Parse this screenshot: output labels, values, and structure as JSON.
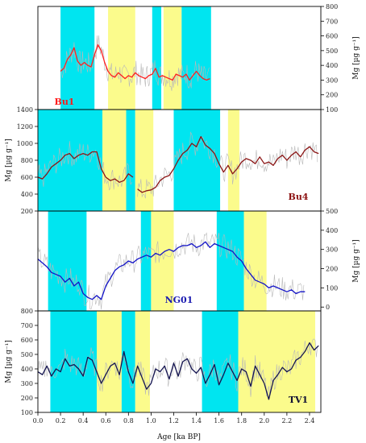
{
  "colors": {
    "cyan_band": "#00e5f0",
    "yellow_band": "#fbfb8c",
    "raw_trace": "#b9b9b9"
  },
  "chart_data": [
    {
      "type": "line",
      "label": "Bu1",
      "label_color": "#ff1a1a",
      "line_color": "#ff2020",
      "ylabel": "Mg [µg g⁻¹]",
      "yaxis_side": "right",
      "ylim": [
        100,
        800
      ],
      "yticks": [
        100,
        200,
        300,
        400,
        500,
        600,
        700,
        800
      ],
      "xlim": [
        0.0,
        2.5
      ],
      "bands": [
        {
          "color": "cyan",
          "x0": 0.2,
          "x1": 0.5
        },
        {
          "color": "yellow",
          "x0": 0.62,
          "x1": 0.86
        },
        {
          "color": "cyan",
          "x0": 1.01,
          "x1": 1.09
        },
        {
          "color": "yellow",
          "x0": 1.11,
          "x1": 1.27
        },
        {
          "color": "cyan",
          "x0": 1.27,
          "x1": 1.53
        }
      ],
      "series": [
        {
          "segments": [
            {
              "x": [
                0.2,
                0.23,
                0.26,
                0.29,
                0.32,
                0.35,
                0.38,
                0.41,
                0.44,
                0.47,
                0.5,
                0.53,
                0.56,
                0.59,
                0.62,
                0.65,
                0.68,
                0.71,
                0.74,
                0.77,
                0.8,
                0.83,
                0.86,
                0.89,
                0.92,
                0.95,
                0.98,
                1.01,
                1.04,
                1.07,
                1.1,
                1.13,
                1.16,
                1.19,
                1.22,
                1.25,
                1.28,
                1.31,
                1.34,
                1.37,
                1.4,
                1.43,
                1.46,
                1.49,
                1.52
              ],
              "y": [
                360,
                380,
                440,
                470,
                520,
                430,
                400,
                420,
                400,
                390,
                470,
                540,
                500,
                420,
                360,
                330,
                320,
                350,
                330,
                310,
                330,
                320,
                350,
                330,
                320,
                310,
                330,
                340,
                380,
                320,
                330,
                320,
                310,
                300,
                340,
                330,
                320,
                340,
                300,
                330,
                360,
                330,
                310,
                300,
                310
              ]
            }
          ]
        }
      ]
    },
    {
      "type": "line",
      "label": "Bu4",
      "label_color": "#8b1010",
      "line_color": "#8b1414",
      "ylabel": "Mg [µg g⁻¹]",
      "yaxis_side": "left",
      "ylim": [
        200,
        1400
      ],
      "yticks": [
        200,
        400,
        600,
        800,
        1000,
        1200,
        1400
      ],
      "xlim": [
        0.0,
        2.5
      ],
      "bands": [
        {
          "color": "cyan",
          "x0": 0.0,
          "x1": 0.57
        },
        {
          "color": "yellow",
          "x0": 0.57,
          "x1": 0.78
        },
        {
          "color": "cyan",
          "x0": 0.78,
          "x1": 0.86
        },
        {
          "color": "yellow",
          "x0": 0.86,
          "x1": 1.02
        },
        {
          "color": "cyan",
          "x0": 1.2,
          "x1": 1.61
        },
        {
          "color": "yellow",
          "x0": 1.68,
          "x1": 1.78
        }
      ],
      "series": [
        {
          "segments": [
            {
              "x": [
                0.0,
                0.04,
                0.08,
                0.12,
                0.16,
                0.2,
                0.24,
                0.28,
                0.32,
                0.36,
                0.4,
                0.44,
                0.48,
                0.52,
                0.56,
                0.6,
                0.64,
                0.68,
                0.72,
                0.76,
                0.8,
                0.84
              ],
              "y": [
                600,
                580,
                640,
                720,
                760,
                800,
                860,
                880,
                820,
                860,
                880,
                860,
                900,
                900,
                700,
                600,
                560,
                580,
                540,
                560,
                640,
                600
              ]
            },
            {
              "x": [
                0.88,
                0.92,
                0.96,
                1.0,
                1.04,
                1.08,
                1.12,
                1.16,
                1.2,
                1.24,
                1.28,
                1.32,
                1.36,
                1.4,
                1.44,
                1.48,
                1.52,
                1.56,
                1.6,
                1.64,
                1.68,
                1.72,
                1.76,
                1.8,
                1.84,
                1.88,
                1.92,
                1.96,
                2.0,
                2.04,
                2.08,
                2.12,
                2.16,
                2.2,
                2.24,
                2.28,
                2.32,
                2.36,
                2.4,
                2.44,
                2.48
              ],
              "y": [
                460,
                420,
                440,
                450,
                480,
                560,
                600,
                620,
                700,
                800,
                880,
                920,
                1000,
                960,
                1080,
                980,
                940,
                880,
                760,
                660,
                740,
                640,
                700,
                780,
                820,
                800,
                760,
                840,
                760,
                780,
                740,
                820,
                860,
                800,
                860,
                900,
                840,
                920,
                960,
                900,
                880
              ]
            }
          ]
        }
      ]
    },
    {
      "type": "line",
      "label": "NG01",
      "label_color": "#1a1ab0",
      "line_color": "#1414c8",
      "ylabel": "Mg [µg g⁻¹]",
      "yaxis_side": "right",
      "ylim": [
        -20,
        500
      ],
      "yticks": [
        0,
        100,
        200,
        300,
        400,
        500
      ],
      "xlim": [
        0.0,
        2.5
      ],
      "bands": [
        {
          "color": "cyan",
          "x0": 0.09,
          "x1": 0.43
        },
        {
          "color": "cyan",
          "x0": 0.91,
          "x1": 1.0
        },
        {
          "color": "yellow",
          "x0": 1.0,
          "x1": 1.2
        },
        {
          "color": "cyan",
          "x0": 1.58,
          "x1": 1.82
        },
        {
          "color": "yellow",
          "x0": 1.82,
          "x1": 2.02
        }
      ],
      "series": [
        {
          "segments": [
            {
              "x": [
                0.0,
                0.04,
                0.08,
                0.12,
                0.16,
                0.2,
                0.24,
                0.28,
                0.32,
                0.36,
                0.4,
                0.44,
                0.48,
                0.52,
                0.56,
                0.6,
                0.64,
                0.68,
                0.72,
                0.76,
                0.8,
                0.84,
                0.88,
                0.92,
                0.96,
                1.0,
                1.04,
                1.08,
                1.12,
                1.16,
                1.2,
                1.24,
                1.28,
                1.32,
                1.36,
                1.4,
                1.44,
                1.48,
                1.52,
                1.56,
                1.6,
                1.64,
                1.68,
                1.72,
                1.76,
                1.8,
                1.84,
                1.88,
                1.92,
                1.96,
                2.0,
                2.04,
                2.08,
                2.12,
                2.16,
                2.2,
                2.24,
                2.28,
                2.32,
                2.36
              ],
              "y": [
                250,
                230,
                210,
                180,
                170,
                160,
                130,
                150,
                110,
                130,
                70,
                50,
                40,
                60,
                40,
                110,
                150,
                190,
                210,
                220,
                240,
                230,
                250,
                260,
                270,
                260,
                280,
                270,
                290,
                300,
                290,
                310,
                320,
                320,
                330,
                310,
                320,
                340,
                310,
                330,
                320,
                310,
                300,
                290,
                260,
                240,
                200,
                170,
                140,
                130,
                120,
                100,
                110,
                100,
                90,
                80,
                90,
                70,
                80,
                80
              ]
            }
          ]
        }
      ]
    },
    {
      "type": "line",
      "label": "TV1",
      "label_color": "#111133",
      "line_color": "#141450",
      "ylabel": "Mg [µg g⁻¹]",
      "yaxis_side": "left",
      "ylim": [
        100,
        800
      ],
      "yticks": [
        100,
        200,
        300,
        400,
        500,
        600,
        700,
        800
      ],
      "xlim": [
        0.0,
        2.5
      ],
      "xlabel": "Age [ka BP]",
      "xticks": [
        "0.0",
        "0.2",
        "0.4",
        "0.6",
        "0.8",
        "1.0",
        "1.2",
        "1.4",
        "1.6",
        "1.8",
        "2.0",
        "2.2",
        "2.4"
      ],
      "bands": [
        {
          "color": "cyan",
          "x0": 0.11,
          "x1": 0.52
        },
        {
          "color": "yellow",
          "x0": 0.52,
          "x1": 0.74
        },
        {
          "color": "cyan",
          "x0": 0.74,
          "x1": 0.86
        },
        {
          "color": "yellow",
          "x0": 0.86,
          "x1": 0.99
        },
        {
          "color": "cyan",
          "x0": 1.45,
          "x1": 1.77
        },
        {
          "color": "yellow",
          "x0": 1.77,
          "x1": 2.45
        }
      ],
      "series": [
        {
          "segments": [
            {
              "x": [
                0.0,
                0.04,
                0.08,
                0.12,
                0.16,
                0.2,
                0.24,
                0.28,
                0.32,
                0.36,
                0.4,
                0.44,
                0.48,
                0.52,
                0.56,
                0.6,
                0.64,
                0.68,
                0.72,
                0.76,
                0.8,
                0.84,
                0.88,
                0.92,
                0.96,
                1.0,
                1.04,
                1.08,
                1.12,
                1.16,
                1.2,
                1.24,
                1.28,
                1.32,
                1.36,
                1.4,
                1.44,
                1.48,
                1.52,
                1.56,
                1.6,
                1.64,
                1.68,
                1.72,
                1.76,
                1.8,
                1.84,
                1.88,
                1.92,
                1.96,
                2.0,
                2.04,
                2.08,
                2.12,
                2.16,
                2.2,
                2.24,
                2.28,
                2.32,
                2.36,
                2.4,
                2.44,
                2.48
              ],
              "y": [
                380,
                360,
                420,
                350,
                400,
                380,
                470,
                420,
                430,
                400,
                350,
                480,
                460,
                380,
                300,
                360,
                420,
                440,
                360,
                520,
                380,
                300,
                420,
                340,
                260,
                300,
                400,
                380,
                420,
                330,
                440,
                350,
                450,
                470,
                400,
                370,
                410,
                300,
                360,
                430,
                290,
                360,
                440,
                380,
                320,
                400,
                380,
                280,
                420,
                360,
                300,
                190,
                320,
                360,
                410,
                380,
                400,
                460,
                480,
                520,
                580,
                530,
                560
              ]
            }
          ]
        }
      ]
    }
  ]
}
